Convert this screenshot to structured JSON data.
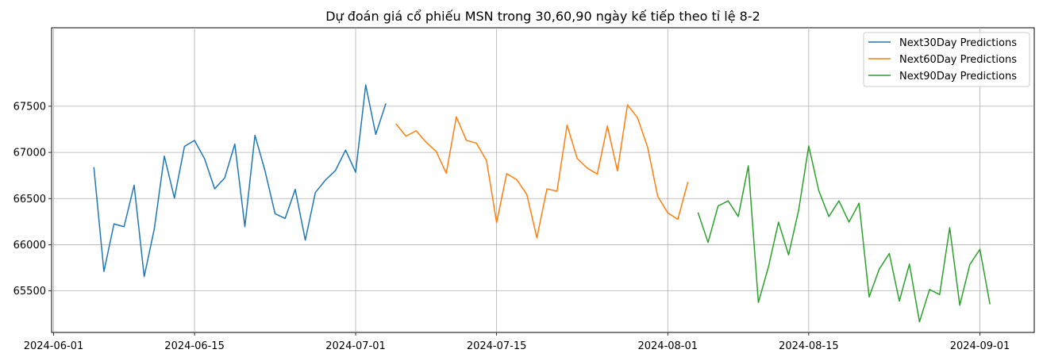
{
  "chart_data": {
    "type": "line",
    "title": "Dự đoán giá cổ phiếu MSN trong 30,60,90 ngày kế tiếp theo tỉ lệ 8-2",
    "xlabel": "",
    "ylabel": "",
    "grid": true,
    "legend_position": "top-right",
    "x_tick_labels": [
      "2024-06-01",
      "2024-06-15",
      "2024-07-01",
      "2024-07-15",
      "2024-08-01",
      "2024-08-15",
      "2024-09-01"
    ],
    "y_tick_labels": [
      "65500",
      "66000",
      "66500",
      "67000",
      "67500"
    ],
    "ylim": [
      65050,
      68350
    ],
    "series": [
      {
        "name": "Next30Day Predictions",
        "color": "#1f77b4",
        "start_date": "2024-06-05",
        "values": [
          66840,
          65710,
          66225,
          66195,
          66645,
          65655,
          66170,
          66960,
          66505,
          67065,
          67130,
          66930,
          66605,
          66725,
          67090,
          66195,
          67185,
          66800,
          66335,
          66285,
          66600,
          66050,
          66565,
          66700,
          66805,
          67025,
          66785,
          67730,
          67195,
          67530
        ]
      },
      {
        "name": "Next60Day Predictions",
        "color": "#ff7f0e",
        "start_date": "2024-07-05",
        "values": [
          67310,
          67175,
          67235,
          67110,
          67010,
          66775,
          67385,
          67130,
          67100,
          66910,
          66240,
          66770,
          66705,
          66545,
          66075,
          66605,
          66580,
          67295,
          66935,
          66830,
          66765,
          67285,
          66800,
          67515,
          67375,
          67055,
          66525,
          66345,
          66275,
          66680
        ]
      },
      {
        "name": "Next90Day Predictions",
        "color": "#2ca02c",
        "start_date": "2024-08-04",
        "values": [
          66350,
          66025,
          66420,
          66475,
          66305,
          66855,
          65375,
          65760,
          66245,
          65890,
          66375,
          67070,
          66585,
          66305,
          66475,
          66245,
          66450,
          65435,
          65735,
          65905,
          65390,
          65790,
          65165,
          65515,
          65460,
          66185,
          65345,
          65785,
          65950,
          65355
        ]
      }
    ]
  }
}
